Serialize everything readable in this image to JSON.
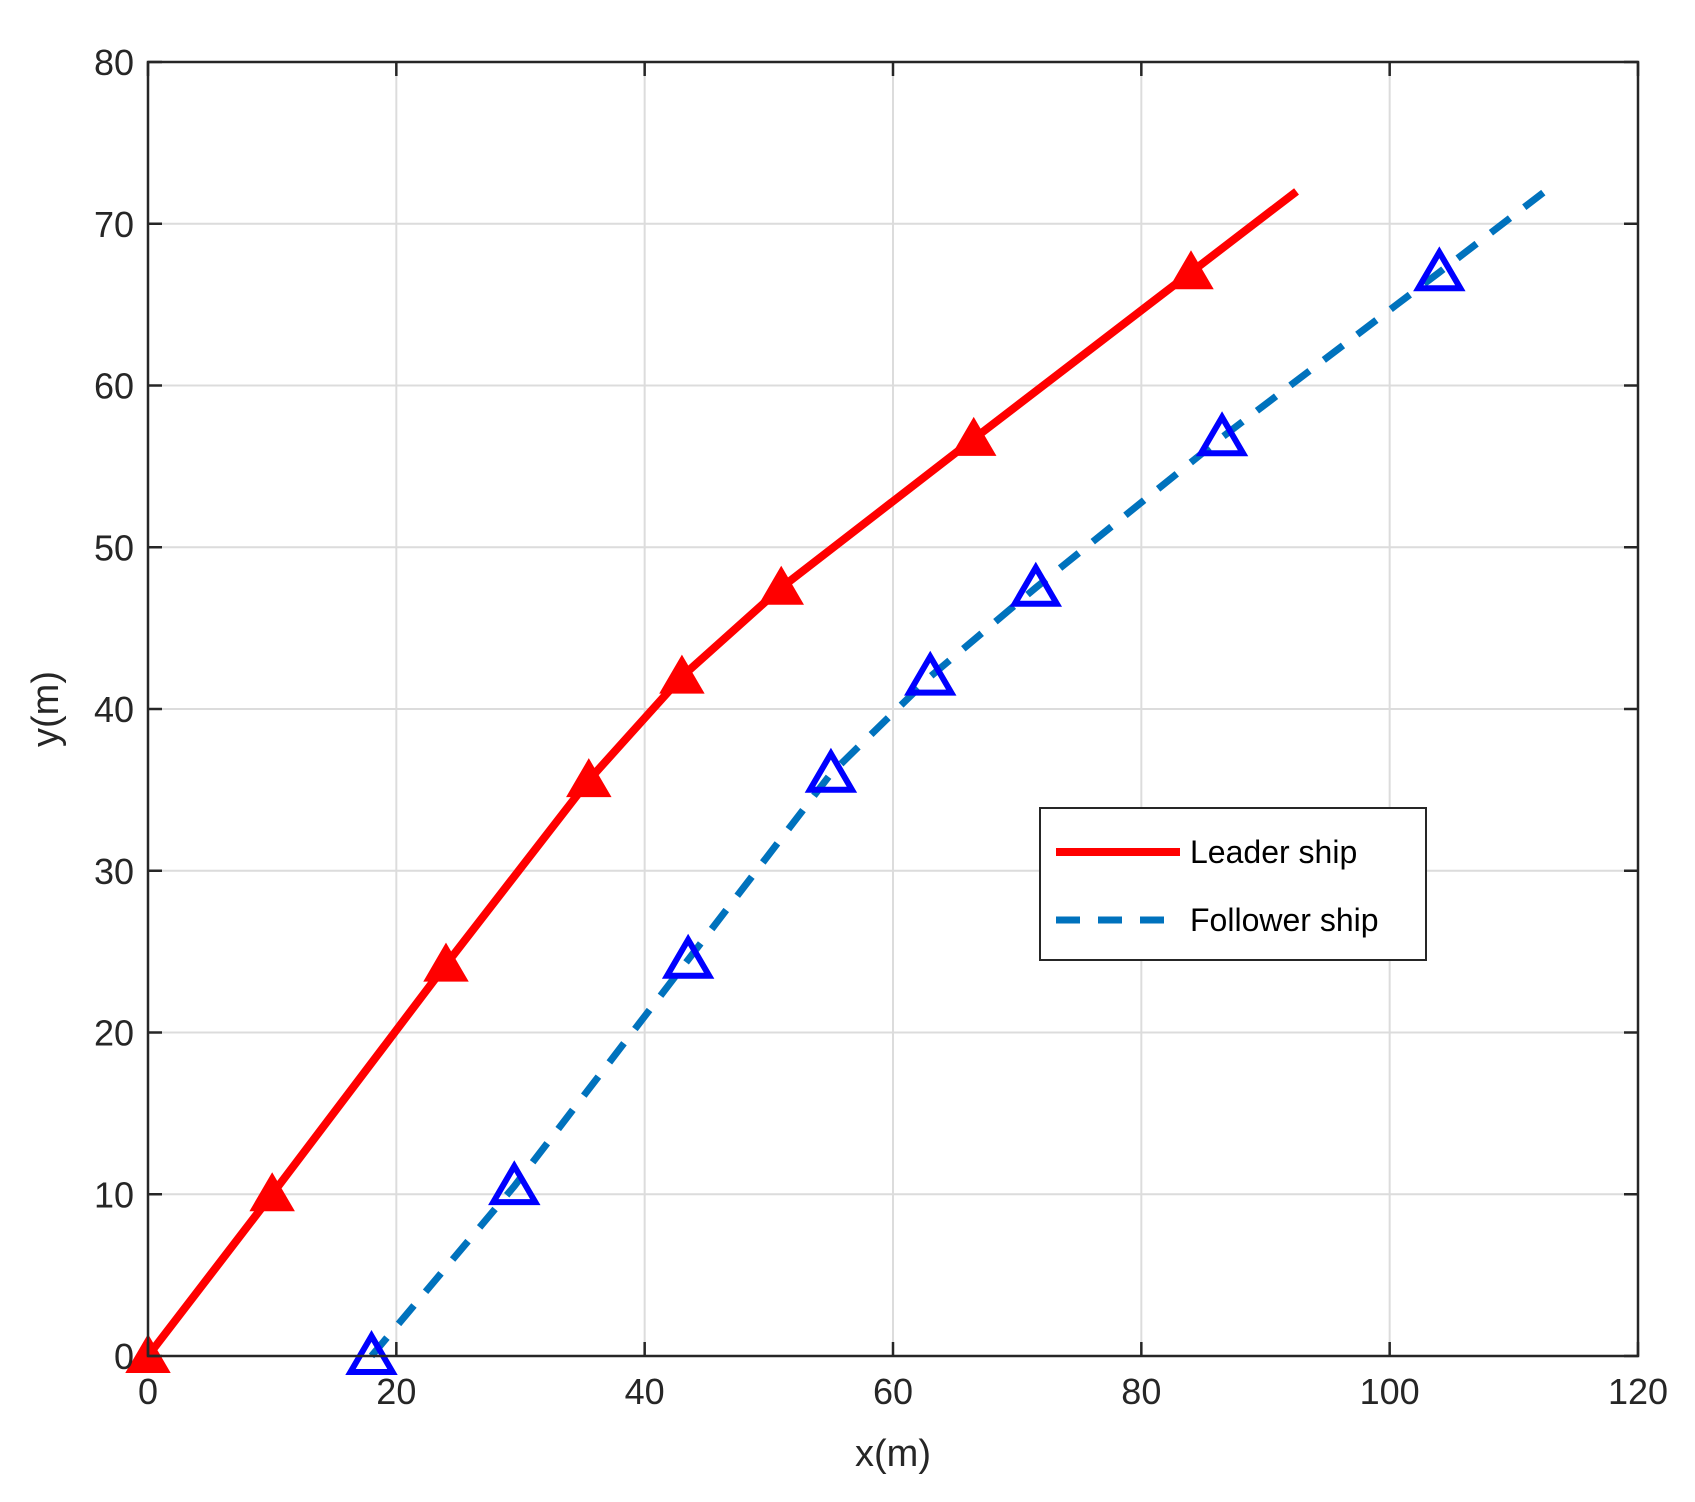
{
  "chart_data": {
    "type": "line",
    "title": "",
    "xlabel": "x(m)",
    "ylabel": "y(m)",
    "xlim": [
      0,
      120
    ],
    "ylim": [
      0,
      80
    ],
    "xticks": [
      0,
      20,
      40,
      60,
      80,
      100,
      120
    ],
    "yticks": [
      0,
      10,
      20,
      30,
      40,
      50,
      60,
      70,
      80
    ],
    "grid": true,
    "legend_position": "center-right",
    "series": [
      {
        "name": "Leader ship",
        "color": "#ff0000",
        "line_style": "solid",
        "marker": "filled-triangle",
        "marker_color": "#ff0000",
        "x": [
          0,
          10,
          24,
          35.5,
          43,
          51,
          66.5,
          84,
          92.5
        ],
        "y": [
          0,
          10,
          24.2,
          35.6,
          42,
          47.5,
          56.7,
          67,
          72
        ],
        "marker_x": [
          0,
          10,
          24,
          35.5,
          43,
          51,
          66.5,
          84
        ],
        "marker_y": [
          0,
          10,
          24.2,
          35.6,
          42,
          47.5,
          56.7,
          67
        ]
      },
      {
        "name": "Follower ship",
        "color": "#0072bd",
        "line_style": "dashed",
        "marker": "hollow-triangle",
        "marker_color": "#0000ff",
        "x": [
          18,
          29.5,
          43.5,
          55,
          63,
          71.5,
          86.5,
          104,
          112.5
        ],
        "y": [
          0,
          10.5,
          24.5,
          36,
          42,
          47.5,
          56.8,
          67,
          72
        ],
        "marker_x": [
          18,
          29.5,
          43.5,
          55,
          63,
          71.5,
          86.5,
          104
        ],
        "marker_y": [
          0,
          10.5,
          24.5,
          36,
          42,
          47.5,
          56.8,
          67
        ]
      }
    ]
  }
}
